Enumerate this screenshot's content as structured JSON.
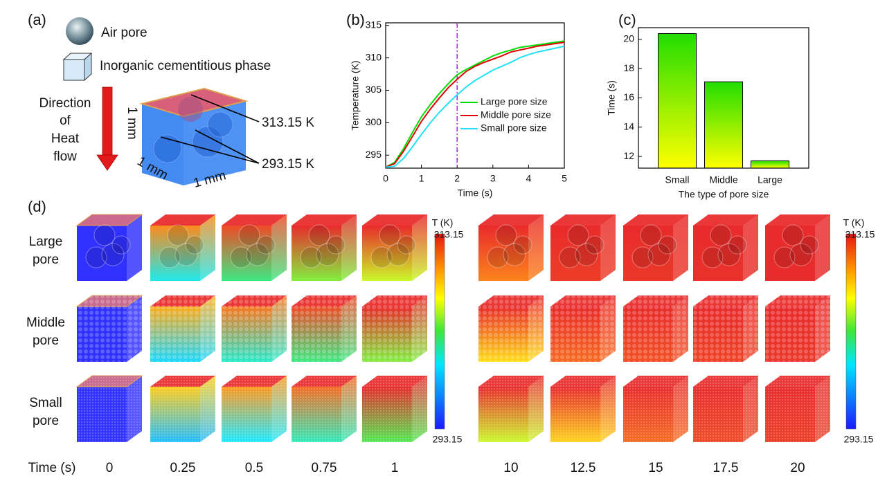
{
  "panel_labels": [
    "(a)",
    "(b)",
    "(c)",
    "(d)"
  ],
  "schematic": {
    "legend": [
      "Air pore",
      "Inorganic cementitious phase"
    ],
    "direction": [
      "Direction",
      "of",
      "Heat",
      "flow"
    ],
    "dimensions": [
      "1 mm",
      "1 mm",
      "1 mm"
    ],
    "temperatures": [
      "313.15 K",
      "293.15 K"
    ]
  },
  "chart_data": [
    {
      "type": "line",
      "xlabel": "Time (s)",
      "ylabel": "Temperature (K)",
      "x": [
        0,
        0.25,
        0.5,
        0.75,
        1,
        1.25,
        1.5,
        1.75,
        2,
        2.25,
        2.5,
        2.75,
        3,
        3.25,
        3.5,
        3.75,
        4,
        4.25,
        4.5,
        4.75,
        5
      ],
      "series": [
        {
          "name": "Large pore size",
          "color": "#00dd00",
          "values": [
            293.15,
            293.9,
            296.0,
            298.5,
            300.9,
            302.8,
            304.5,
            306.0,
            307.4,
            308.2,
            308.9,
            309.6,
            310.3,
            310.8,
            311.2,
            311.6,
            311.8,
            312.0,
            312.2,
            312.4,
            312.6
          ]
        },
        {
          "name": "Middle pore size",
          "color": "#e00000",
          "values": [
            293.15,
            293.7,
            295.6,
            297.9,
            300.2,
            302.1,
            303.8,
            305.4,
            306.7,
            307.9,
            308.7,
            309.3,
            309.8,
            310.3,
            310.9,
            311.2,
            311.5,
            311.8,
            312.0,
            312.2,
            312.4
          ]
        },
        {
          "name": "Small pore size",
          "color": "#22e0f5",
          "values": [
            293.15,
            293.3,
            294.5,
            296.3,
            298.2,
            300.0,
            301.6,
            303.0,
            304.3,
            305.5,
            306.5,
            307.3,
            308.1,
            308.7,
            309.3,
            310.0,
            310.5,
            310.9,
            311.2,
            311.5,
            311.8
          ]
        }
      ],
      "xlim": [
        0,
        5
      ],
      "xticks": [
        0,
        1,
        2,
        3,
        4,
        5
      ],
      "ylim": [
        293,
        315.4
      ],
      "yticks": [
        295,
        300,
        305,
        310,
        315
      ],
      "vline": {
        "x": 2,
        "color": "#9933cc"
      },
      "legend": "right"
    },
    {
      "type": "bar",
      "xlabel": "The type of pore size",
      "ylabel": "Time (s)",
      "categories": [
        "Small",
        "Middle",
        "Large"
      ],
      "values": [
        20.4,
        17.1,
        11.7
      ],
      "gradient": [
        "#22dd00",
        "#ffff00"
      ],
      "ylim": [
        11.2,
        20.8
      ],
      "yticks": [
        12,
        14,
        16,
        18,
        20
      ]
    }
  ],
  "simulation": {
    "rows": [
      [
        "Large",
        "pore"
      ],
      [
        "Middle",
        "pore"
      ],
      [
        "Small",
        "pore"
      ]
    ],
    "time_label": "Time (s)",
    "times": [
      0,
      0.25,
      0.5,
      0.75,
      1,
      10,
      12.5,
      15,
      17.5,
      20
    ],
    "colorbar": {
      "title": "T (K)",
      "max": 313.15,
      "min": 293.15
    }
  }
}
